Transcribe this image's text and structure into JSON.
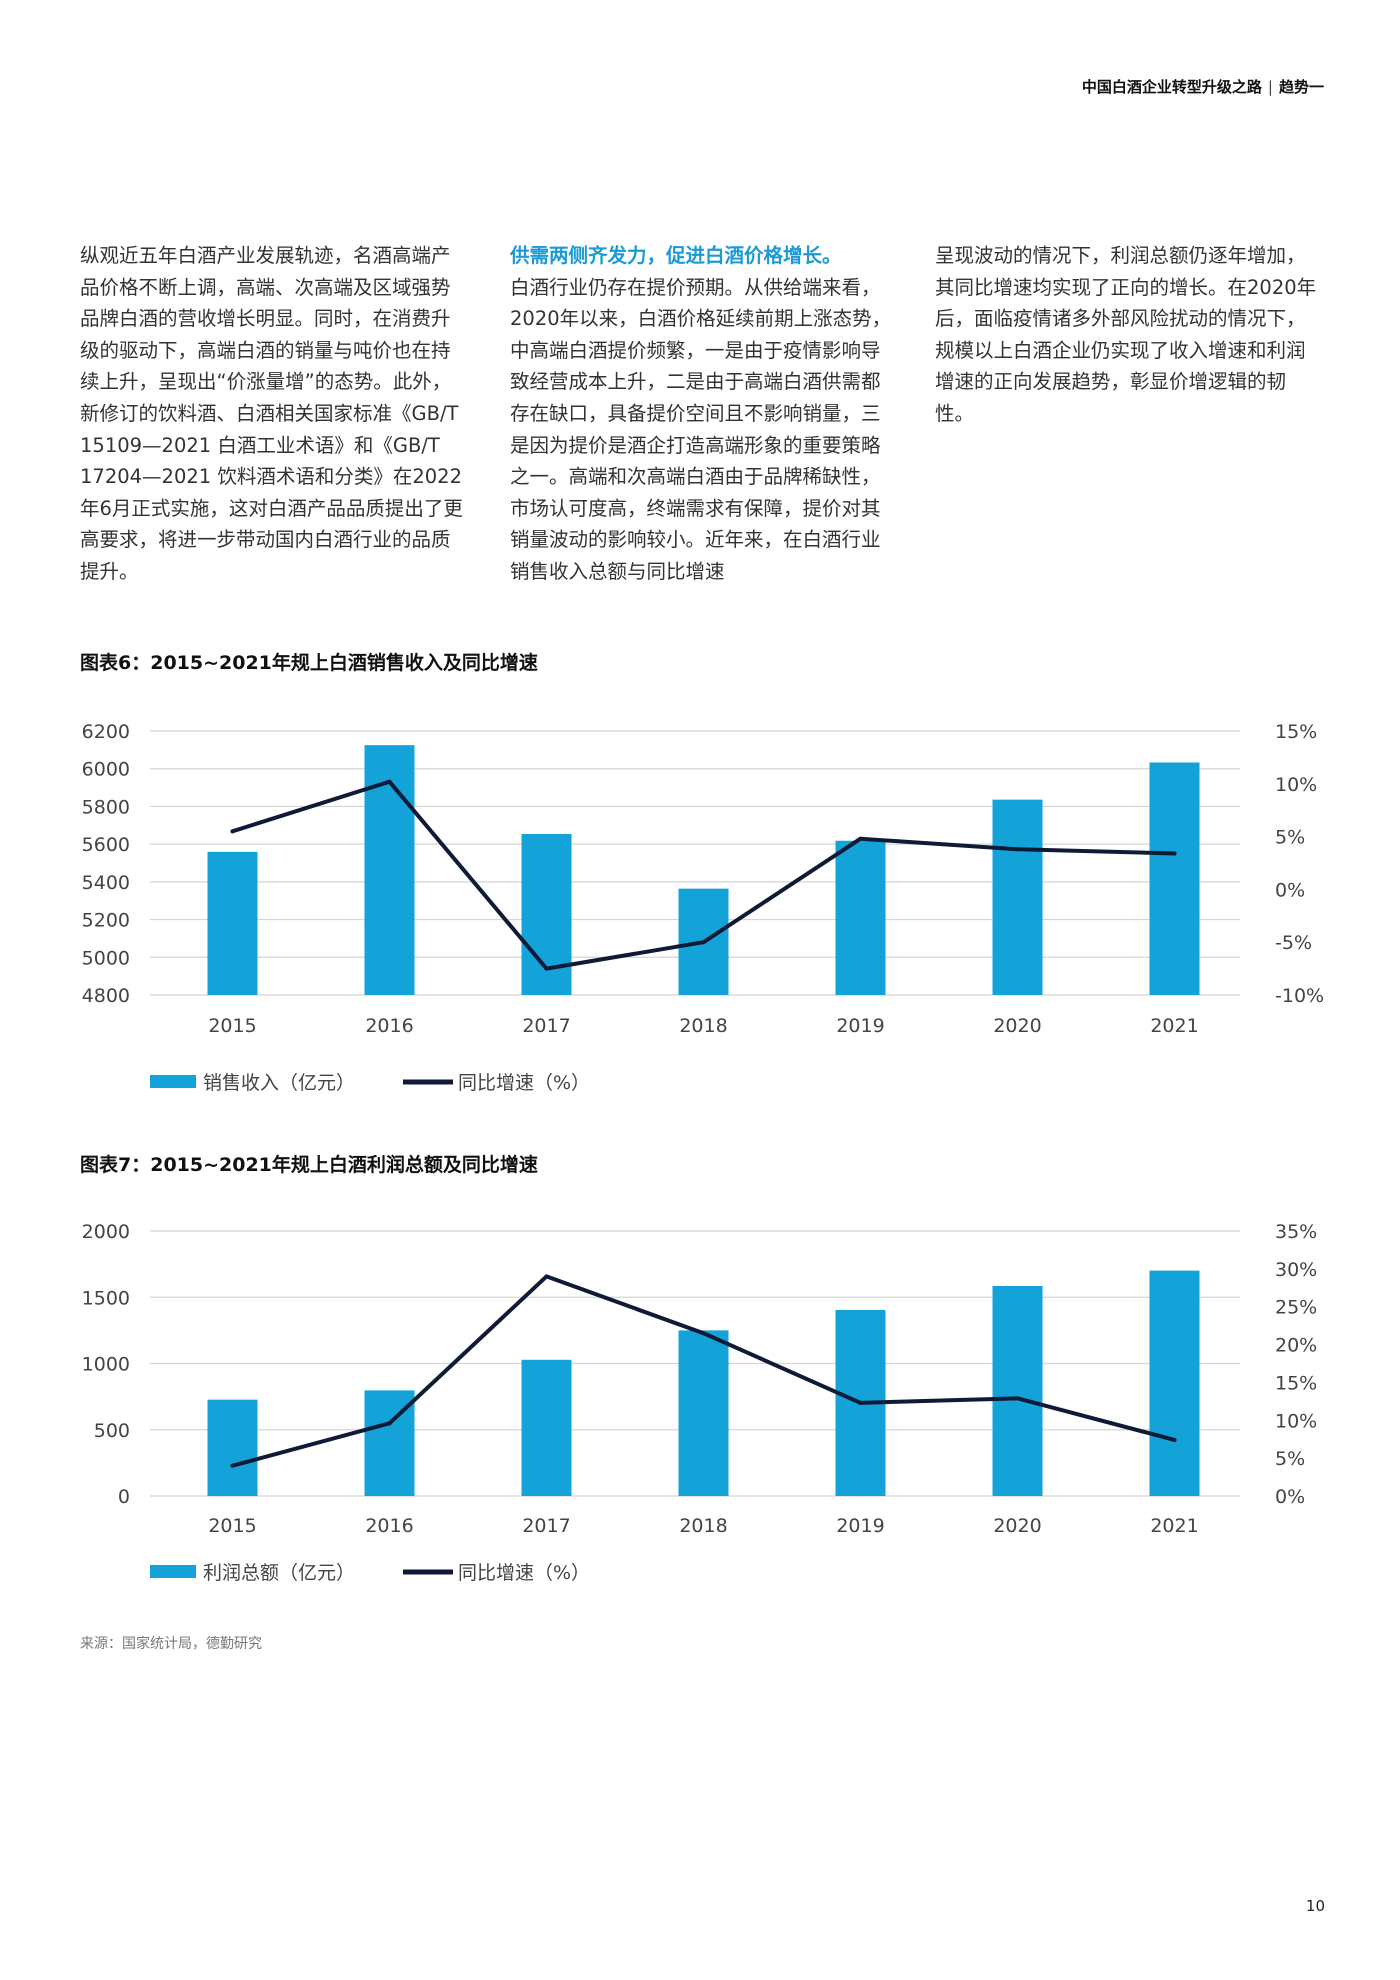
{
  "header": {
    "title": "中国白酒企业转型升级之路",
    "separator": "|",
    "section": "趋势一"
  },
  "body": {
    "col1": "纵观近五年白酒产业发展轨迹，名酒高端产品价格不断上调，高端、次高端及区域强势品牌白酒的营收增长明显。同时，在消费升级的驱动下，高端白酒的销量与吨价也在持续上升，呈现出“价涨量增”的态势。此外，新修订的饮料酒、白酒相关国家标准《GB/T 15109—2021 白酒工业术语》和《GB/T 17204—2021 饮料酒术语和分类》在2022年6月正式实施，这对白酒产品品质提出了更高要求，将进一步带动国内白酒行业的品质提升。",
    "col2_lead": "供需两侧齐发力，促进白酒价格增长。",
    "col2": "白酒行业仍存在提价预期。从供给端来看，2020年以来，白酒价格延续前期上涨态势，中高端白酒提价频繁，一是由于疫情影响导致经营成本上升，二是由于高端白酒供需都存在缺口，具备提价空间且不影响销量，三是因为提价是酒企打造高端形象的重要策略之一。高端和次高端白酒由于品牌稀缺性，市场认可度高，终端需求有保障，提价对其销量波动的影响较小。近年来，在白酒行业销售收入总额与同比增速",
    "col3": "呈现波动的情况下，利润总额仍逐年增加，其同比增速均实现了正向的增长。在2020年后，面临疫情诸多外部风险扰动的情况下，规模以上白酒企业仍实现了收入增速和利润增速的正向发展趋势，彰显价增逻辑的韧性。"
  },
  "figures": {
    "fig6_title": "图表6：2015~2021年规上白酒销售收入及同比增速",
    "fig7_title": "图表7：2015~2021年规上白酒利润总额及同比增速"
  },
  "chart_data": [
    {
      "type": "bar",
      "title": "图表6：2015~2021年规上白酒销售收入及同比增速",
      "categories": [
        "2015",
        "2016",
        "2017",
        "2018",
        "2019",
        "2020",
        "2021"
      ],
      "series": [
        {
          "name": "销售收入（亿元）",
          "type": "bar",
          "axis": "left",
          "values": [
            5559,
            6125,
            5654,
            5364,
            5618,
            5836,
            6033
          ]
        },
        {
          "name": "同比增速（%）",
          "type": "line",
          "axis": "right",
          "values": [
            5.5,
            10.2,
            -7.5,
            -5.0,
            4.8,
            3.8,
            3.4
          ]
        }
      ],
      "y_left": {
        "min": 4800,
        "max": 6200,
        "ticks": [
          "6200",
          "6000",
          "5800",
          "5600",
          "5400",
          "5200",
          "5000",
          "4800"
        ]
      },
      "y_right": {
        "min": -10,
        "max": 15,
        "ticks": [
          "15%",
          "10%",
          "5%",
          "0%",
          "-5%",
          "-10%"
        ]
      },
      "grid": true,
      "legend": "bottom-left",
      "colors": {
        "bar": "#13a3d8",
        "line": "#0f1a36"
      }
    },
    {
      "type": "bar",
      "title": "图表7：2015~2021年规上白酒利润总额及同比增速",
      "categories": [
        "2015",
        "2016",
        "2017",
        "2018",
        "2019",
        "2020",
        "2021"
      ],
      "series": [
        {
          "name": "利润总额（亿元）",
          "type": "bar",
          "axis": "left",
          "values": [
            727,
            797,
            1028,
            1250,
            1404,
            1585,
            1701
          ]
        },
        {
          "name": "同比增速（%）",
          "type": "line",
          "axis": "right",
          "values": [
            4.0,
            9.6,
            29.0,
            21.5,
            12.3,
            12.9,
            7.4
          ]
        }
      ],
      "y_left": {
        "min": 0,
        "max": 2000,
        "ticks": [
          "2000",
          "1500",
          "1000",
          "500",
          "0"
        ]
      },
      "y_right": {
        "min": 0,
        "max": 35,
        "ticks": [
          "35%",
          "30%",
          "25%",
          "20%",
          "15%",
          "10%",
          "5%",
          "0%"
        ]
      },
      "grid": true,
      "legend": "bottom-left",
      "colors": {
        "bar": "#13a3d8",
        "line": "#0f1a36"
      }
    }
  ],
  "footer": {
    "source": "来源：国家统计局，德勤研究",
    "page_number": "10"
  }
}
